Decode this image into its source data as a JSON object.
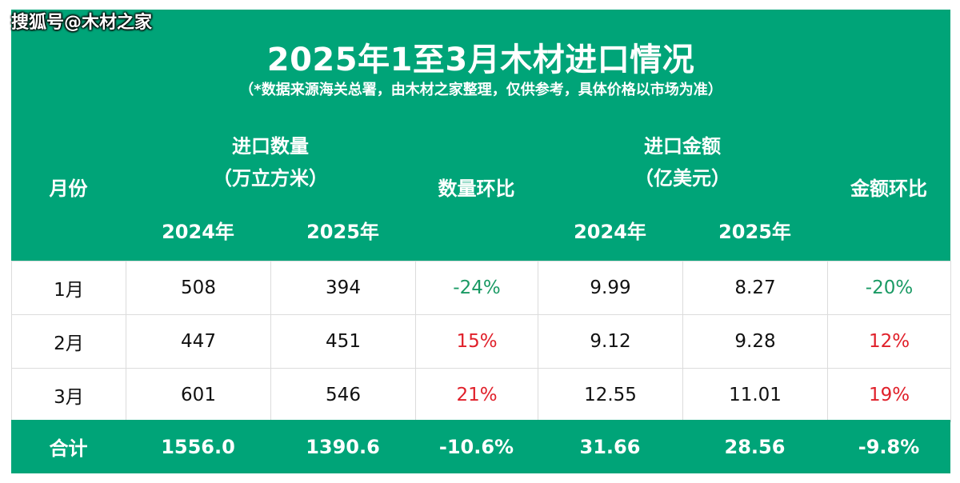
{
  "watermark": "搜狐号@木材之家",
  "title": "2025年1至3月木材进口情况",
  "subtitle": "（*数据来源海关总署，由木材之家整理，仅供参考，具体价格以市场为准）",
  "headers": {
    "month": "月份",
    "qty_title": "进口数量",
    "qty_unit": "（万立方米）",
    "qty_mom": "数量环比",
    "amt_title": "进口金额",
    "amt_unit": "（亿美元）",
    "amt_mom": "金额环比",
    "y2024": "2024年",
    "y2025": "2025年"
  },
  "rows": [
    {
      "month": "1月",
      "q2024": "508",
      "q2025": "394",
      "q_mom": "-24%",
      "a2024": "9.99",
      "a2025": "8.27",
      "a_mom": "-20%"
    },
    {
      "month": "2月",
      "q2024": "447",
      "q2025": "451",
      "q_mom": "15%",
      "a2024": "9.12",
      "a2025": "9.28",
      "a_mom": "12%"
    },
    {
      "month": "3月",
      "q2024": "601",
      "q2025": "546",
      "q_mom": "21%",
      "a2024": "12.55",
      "a2025": "11.01",
      "a_mom": "19%"
    }
  ],
  "total": {
    "label": "合计",
    "q2024": "1556.0",
    "q2025": "1390.6",
    "q_mom": "-10.6%",
    "a2024": "31.66",
    "a2025": "28.56",
    "a_mom": "-9.8%"
  },
  "colors": {
    "header_bg": "#00a478",
    "negative": "#1a9a64",
    "positive": "#e0202a"
  }
}
